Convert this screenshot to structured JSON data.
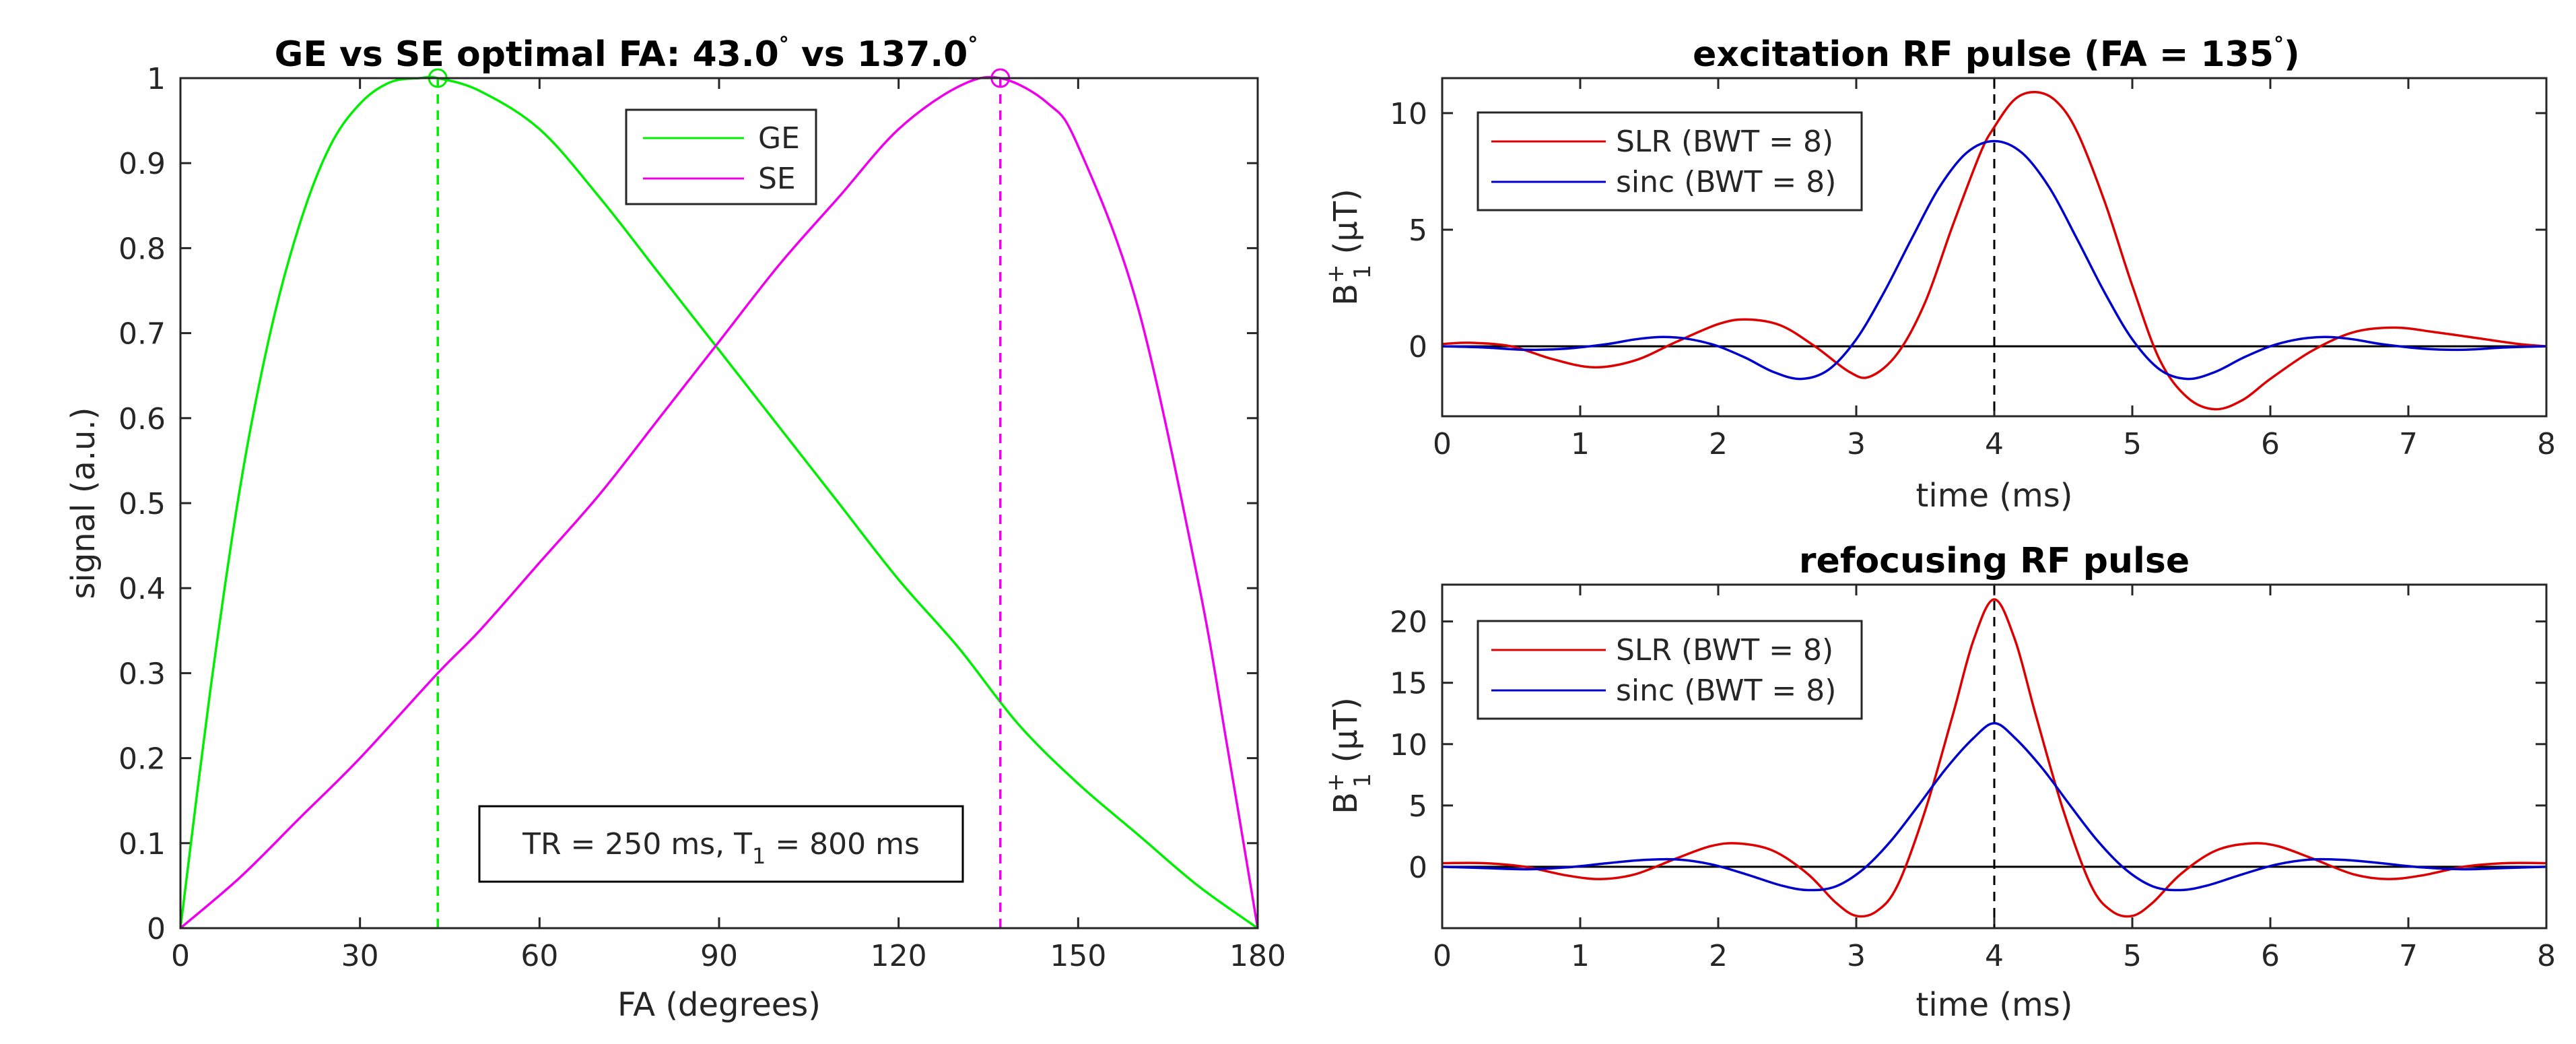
{
  "colors": {
    "ge": "#00ee00",
    "se": "#ee00ee",
    "slr": "#dd0000",
    "sinc": "#0000cc",
    "axis": "#262626",
    "zero_line": "#000000"
  },
  "chart_data": [
    {
      "type": "line",
      "title_prefix": "GE vs SE optimal FA: ",
      "title_ge": "43.0",
      "title_mid": " vs ",
      "title_se": "137.0",
      "degree_mark": "°",
      "xlabel": "FA (degrees)",
      "ylabel": "signal (a.u.)",
      "xlim": [
        0,
        180
      ],
      "ylim": [
        0,
        1
      ],
      "xticks": [
        0,
        30,
        60,
        90,
        120,
        150,
        180
      ],
      "yticks": [
        0,
        0.1,
        0.2,
        0.3,
        0.4,
        0.5,
        0.6,
        0.7,
        0.8,
        0.9,
        1
      ],
      "ytick_labels": [
        "0",
        "0.1",
        "0.2",
        "0.3",
        "0.4",
        "0.5",
        "0.6",
        "0.7",
        "0.8",
        "0.9",
        "1"
      ],
      "legend_position": "top-center",
      "series": [
        {
          "name": "GE",
          "x": [
            0,
            5,
            10,
            15,
            20,
            25,
            30,
            35,
            40,
            43,
            50,
            60,
            70,
            80,
            90,
            100,
            110,
            120,
            130,
            140,
            150,
            160,
            170,
            180
          ],
          "values": [
            0,
            0.28,
            0.52,
            0.7,
            0.83,
            0.92,
            0.97,
            0.995,
            1.0,
            1.0,
            0.985,
            0.94,
            0.86,
            0.77,
            0.68,
            0.59,
            0.5,
            0.41,
            0.33,
            0.24,
            0.17,
            0.11,
            0.05,
            0
          ]
        },
        {
          "name": "SE",
          "x": [
            0,
            10,
            20,
            30,
            43,
            50,
            60,
            70,
            80,
            90,
            100,
            110,
            120,
            130,
            137,
            145,
            150,
            160,
            170,
            175,
            180
          ],
          "values": [
            0,
            0.06,
            0.13,
            0.2,
            0.3,
            0.35,
            0.43,
            0.51,
            0.6,
            0.69,
            0.78,
            0.86,
            0.94,
            0.99,
            1.0,
            0.97,
            0.92,
            0.73,
            0.41,
            0.21,
            0
          ]
        }
      ],
      "optimal_markers": [
        {
          "name": "GE",
          "x": 43,
          "y": 1
        },
        {
          "name": "SE",
          "x": 137,
          "y": 1
        }
      ],
      "annotation_prefix": "TR = 250 ms, T",
      "annotation_sub": "1",
      "annotation_suffix": " = 800 ms"
    },
    {
      "type": "line",
      "title": "excitation RF pulse (FA = 135",
      "title_close": ")",
      "degree_mark": "°",
      "xlabel": "time (ms)",
      "ylabel_b": "B",
      "ylabel_sup": "+",
      "ylabel_sub": "1",
      "ylabel_unit": " (μT)",
      "xlim": [
        0,
        8
      ],
      "ylim": [
        -3,
        11.5
      ],
      "xticks": [
        0,
        1,
        2,
        3,
        4,
        5,
        6,
        7,
        8
      ],
      "yticks": [
        0,
        5,
        10
      ],
      "legend_position": "top-left",
      "center_line_x": 4,
      "series": [
        {
          "name": "SLR (BWT = 8)",
          "x": [
            0,
            0.2,
            0.5,
            0.8,
            1.1,
            1.4,
            1.7,
            2.0,
            2.2,
            2.45,
            2.7,
            2.95,
            3.1,
            3.3,
            3.5,
            3.7,
            3.9,
            4.0,
            4.15,
            4.3,
            4.45,
            4.6,
            4.8,
            5.0,
            5.2,
            5.4,
            5.6,
            5.8,
            6.0,
            6.3,
            6.6,
            6.9,
            7.2,
            7.5,
            7.8,
            8.0
          ],
          "values": [
            0.1,
            0.15,
            0.0,
            -0.55,
            -0.9,
            -0.6,
            0.2,
            0.95,
            1.15,
            0.9,
            0.0,
            -1.1,
            -1.3,
            -0.3,
            1.9,
            5.2,
            8.3,
            9.4,
            10.6,
            10.9,
            10.5,
            9.2,
            6.2,
            2.6,
            -0.6,
            -2.2,
            -2.7,
            -2.3,
            -1.4,
            -0.2,
            0.6,
            0.8,
            0.6,
            0.35,
            0.1,
            0.0
          ]
        },
        {
          "name": "sinc (BWT = 8)",
          "x": [
            0,
            0.3,
            0.6,
            0.9,
            1.2,
            1.4,
            1.6,
            1.8,
            2.0,
            2.2,
            2.4,
            2.6,
            2.8,
            3.0,
            3.2,
            3.4,
            3.6,
            3.8,
            4.0,
            4.2,
            4.4,
            4.6,
            4.8,
            5.0,
            5.2,
            5.4,
            5.6,
            5.8,
            6.0,
            6.2,
            6.4,
            6.6,
            6.8,
            7.1,
            7.4,
            7.7,
            8.0
          ],
          "values": [
            0,
            -0.05,
            -0.15,
            -0.1,
            0.1,
            0.3,
            0.4,
            0.3,
            0.0,
            -0.5,
            -1.1,
            -1.4,
            -1.0,
            0.3,
            2.3,
            4.6,
            6.8,
            8.3,
            8.8,
            8.3,
            6.8,
            4.6,
            2.3,
            0.3,
            -1.0,
            -1.4,
            -1.1,
            -0.5,
            0.0,
            0.3,
            0.4,
            0.3,
            0.1,
            -0.1,
            -0.15,
            -0.05,
            0
          ]
        }
      ]
    },
    {
      "type": "line",
      "title": "refocusing RF pulse",
      "xlabel": "time (ms)",
      "ylabel_b": "B",
      "ylabel_sup": "+",
      "ylabel_sub": "1",
      "ylabel_unit": " (μT)",
      "xlim": [
        0,
        8
      ],
      "ylim": [
        -5,
        23
      ],
      "xticks": [
        0,
        1,
        2,
        3,
        4,
        5,
        6,
        7,
        8
      ],
      "yticks": [
        0,
        5,
        10,
        15,
        20
      ],
      "legend_position": "top-left",
      "center_line_x": 4,
      "series": [
        {
          "name": "SLR (BWT = 8)",
          "x": [
            0,
            0.3,
            0.6,
            0.9,
            1.15,
            1.4,
            1.7,
            1.95,
            2.15,
            2.4,
            2.65,
            2.85,
            3.0,
            3.15,
            3.3,
            3.5,
            3.7,
            3.85,
            4.0,
            4.15,
            4.3,
            4.5,
            4.7,
            4.85,
            5.0,
            5.15,
            5.35,
            5.6,
            5.85,
            6.05,
            6.3,
            6.6,
            6.85,
            7.1,
            7.4,
            7.7,
            8.0
          ],
          "values": [
            0.3,
            0.3,
            0.0,
            -0.7,
            -1.0,
            -0.6,
            0.7,
            1.7,
            1.9,
            1.3,
            -0.6,
            -2.9,
            -4.0,
            -3.6,
            -1.5,
            4.6,
            12.4,
            18.5,
            21.8,
            18.5,
            12.4,
            4.6,
            -1.5,
            -3.6,
            -4.0,
            -2.9,
            -0.6,
            1.3,
            1.9,
            1.7,
            0.7,
            -0.6,
            -1.0,
            -0.7,
            0.0,
            0.3,
            0.3
          ]
        },
        {
          "name": "sinc (BWT = 8)",
          "x": [
            0,
            0.3,
            0.6,
            0.9,
            1.2,
            1.45,
            1.7,
            1.95,
            2.2,
            2.45,
            2.65,
            2.85,
            3.05,
            3.25,
            3.45,
            3.65,
            3.85,
            4.0,
            4.15,
            4.35,
            4.55,
            4.75,
            4.95,
            5.15,
            5.35,
            5.55,
            5.8,
            6.05,
            6.3,
            6.55,
            6.8,
            7.1,
            7.4,
            7.7,
            8.0
          ],
          "values": [
            0,
            -0.1,
            -0.2,
            -0.05,
            0.3,
            0.55,
            0.6,
            0.2,
            -0.6,
            -1.5,
            -1.9,
            -1.6,
            -0.2,
            2.1,
            5.0,
            8.0,
            10.5,
            11.7,
            10.5,
            8.0,
            5.0,
            2.1,
            -0.2,
            -1.6,
            -1.9,
            -1.5,
            -0.6,
            0.2,
            0.6,
            0.55,
            0.3,
            -0.05,
            -0.2,
            -0.1,
            0
          ]
        }
      ]
    }
  ]
}
